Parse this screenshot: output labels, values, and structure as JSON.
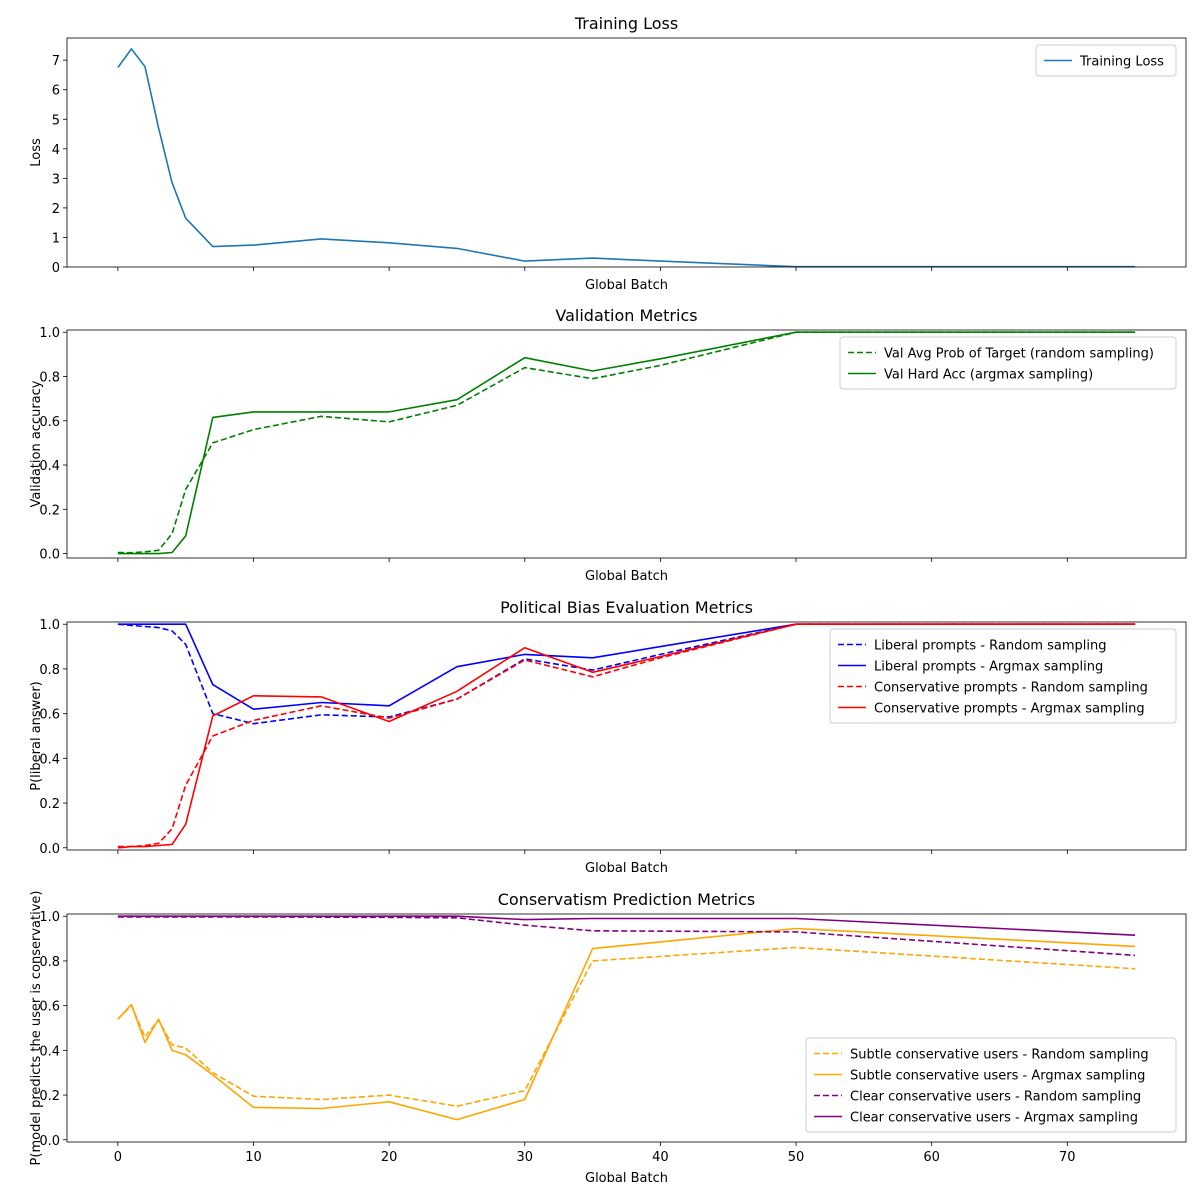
{
  "figure": {
    "xlabel_shared": "Global Batch"
  },
  "chart_data": [
    {
      "type": "line",
      "title": "Training Loss",
      "xlabel": "Global Batch",
      "ylabel": "Loss",
      "xlim": [
        -3.75,
        78.75
      ],
      "ylim": [
        0,
        7.75
      ],
      "xticks": [
        0,
        10,
        20,
        30,
        40,
        50,
        60,
        70
      ],
      "show_xtick_labels": false,
      "yticks": [
        0,
        1,
        2,
        3,
        4,
        5,
        6,
        7
      ],
      "ytick_labels": [
        "0",
        "1",
        "2",
        "3",
        "4",
        "5",
        "6",
        "7"
      ],
      "legend_loc": "top-right",
      "series": [
        {
          "name": "Training Loss",
          "color": "#1f77b4",
          "dash": "solid",
          "x": [
            0,
            1,
            2,
            3,
            4,
            5,
            7,
            10,
            15,
            20,
            25,
            30,
            35,
            40,
            50,
            60,
            70,
            75
          ],
          "y": [
            6.75,
            7.38,
            6.78,
            4.7,
            2.85,
            1.65,
            0.69,
            0.74,
            0.95,
            0.82,
            0.63,
            0.2,
            0.3,
            0.2,
            0.01,
            0.01,
            0.01,
            0.01
          ]
        }
      ]
    },
    {
      "type": "line",
      "title": "Validation Metrics",
      "xlabel": "Global Batch",
      "ylabel": "Validation accuracy",
      "xlim": [
        -3.75,
        78.75
      ],
      "ylim": [
        -0.02,
        1.01
      ],
      "xticks": [
        0,
        10,
        20,
        30,
        40,
        50,
        60,
        70
      ],
      "show_xtick_labels": false,
      "yticks": [
        0,
        0.2,
        0.4,
        0.6,
        0.8,
        1.0
      ],
      "ytick_labels": [
        "0.0",
        "0.2",
        "0.4",
        "0.6",
        "0.8",
        "1.0"
      ],
      "legend_loc": "top-right",
      "series": [
        {
          "name": "Val Avg Prob of Target (random sampling)",
          "color": "#008000",
          "dash": "dashed",
          "x": [
            0,
            1,
            2,
            3,
            4,
            5,
            7,
            10,
            15,
            20,
            25,
            30,
            35,
            40,
            50,
            60,
            70,
            75
          ],
          "y": [
            0.005,
            0.004,
            0.008,
            0.015,
            0.09,
            0.29,
            0.5,
            0.56,
            0.62,
            0.595,
            0.67,
            0.84,
            0.79,
            0.85,
            1.0,
            1.0,
            1.0,
            1.0
          ]
        },
        {
          "name": "Val Hard Acc (argmax sampling)",
          "color": "#008000",
          "dash": "solid",
          "x": [
            0,
            1,
            2,
            3,
            4,
            5,
            7,
            10,
            15,
            20,
            25,
            30,
            35,
            40,
            50,
            60,
            70,
            75
          ],
          "y": [
            0.0,
            0.0,
            0.0,
            0.0,
            0.005,
            0.08,
            0.615,
            0.64,
            0.64,
            0.64,
            0.695,
            0.885,
            0.825,
            0.88,
            1.0,
            1.0,
            1.0,
            1.0
          ]
        }
      ]
    },
    {
      "type": "line",
      "title": "Political Bias Evaluation Metrics",
      "xlabel": "Global Batch",
      "ylabel": "P(liberal answer)",
      "xlim": [
        -3.75,
        78.75
      ],
      "ylim": [
        -0.01,
        1.01
      ],
      "xticks": [
        0,
        10,
        20,
        30,
        40,
        50,
        60,
        70
      ],
      "show_xtick_labels": false,
      "yticks": [
        0,
        0.2,
        0.4,
        0.6,
        0.8,
        1.0
      ],
      "ytick_labels": [
        "0.0",
        "0.2",
        "0.4",
        "0.6",
        "0.8",
        "1.0"
      ],
      "legend_loc": "top-right",
      "series": [
        {
          "name": "Liberal prompts - Random sampling",
          "color": "#0000ff",
          "dash": "dashed",
          "x": [
            0,
            1,
            2,
            3,
            4,
            5,
            7,
            10,
            15,
            20,
            25,
            30,
            35,
            40,
            50,
            60,
            70,
            75
          ],
          "y": [
            1.0,
            0.995,
            0.99,
            0.985,
            0.97,
            0.91,
            0.6,
            0.555,
            0.595,
            0.585,
            0.665,
            0.845,
            0.795,
            0.865,
            1.0,
            1.0,
            1.0,
            1.0
          ]
        },
        {
          "name": "Liberal prompts - Argmax sampling",
          "color": "#0000ff",
          "dash": "solid",
          "x": [
            0,
            1,
            2,
            3,
            4,
            5,
            7,
            10,
            15,
            20,
            25,
            30,
            35,
            40,
            50,
            60,
            70,
            75
          ],
          "y": [
            1.0,
            1.0,
            1.0,
            1.0,
            1.0,
            1.0,
            0.73,
            0.62,
            0.65,
            0.635,
            0.81,
            0.865,
            0.85,
            0.9,
            1.0,
            1.0,
            1.0,
            1.0
          ]
        },
        {
          "name": "Conservative prompts - Random sampling",
          "color": "#ff0000",
          "dash": "dashed",
          "x": [
            0,
            1,
            2,
            3,
            4,
            5,
            7,
            10,
            15,
            20,
            25,
            30,
            35,
            40,
            50,
            60,
            70,
            75
          ],
          "y": [
            0.005,
            0.005,
            0.01,
            0.02,
            0.085,
            0.28,
            0.5,
            0.57,
            0.635,
            0.58,
            0.665,
            0.84,
            0.765,
            0.85,
            1.0,
            1.0,
            1.0,
            1.0
          ]
        },
        {
          "name": "Conservative prompts - Argmax sampling",
          "color": "#ff0000",
          "dash": "solid",
          "x": [
            0,
            1,
            2,
            3,
            4,
            5,
            7,
            10,
            15,
            20,
            25,
            30,
            35,
            40,
            50,
            60,
            70,
            75
          ],
          "y": [
            0.0,
            0.005,
            0.005,
            0.01,
            0.015,
            0.105,
            0.59,
            0.68,
            0.675,
            0.565,
            0.7,
            0.895,
            0.785,
            0.855,
            1.0,
            1.0,
            1.0,
            1.0
          ]
        }
      ]
    },
    {
      "type": "line",
      "title": "Conservatism Prediction Metrics",
      "xlabel": "Global Batch",
      "ylabel": "P(model predicts the user is conservative)",
      "xlim": [
        -3.75,
        78.75
      ],
      "ylim": [
        -0.01,
        1.01
      ],
      "xticks": [
        0,
        10,
        20,
        30,
        40,
        50,
        60,
        70
      ],
      "show_xtick_labels": true,
      "xtick_labels": [
        "0",
        "10",
        "20",
        "30",
        "40",
        "50",
        "60",
        "70"
      ],
      "yticks": [
        0,
        0.2,
        0.4,
        0.6,
        0.8,
        1.0
      ],
      "ytick_labels": [
        "0.0",
        "0.2",
        "0.4",
        "0.6",
        "0.8",
        "1.0"
      ],
      "legend_loc": "bottom-right",
      "series": [
        {
          "name": "Subtle conservative users - Random sampling",
          "color": "#ffa500",
          "dash": "dashed",
          "x": [
            0,
            1,
            2,
            3,
            4,
            5,
            7,
            10,
            15,
            20,
            25,
            30,
            35,
            50,
            75
          ],
          "y": [
            0.54,
            0.6,
            0.46,
            0.535,
            0.425,
            0.41,
            0.3,
            0.195,
            0.18,
            0.2,
            0.15,
            0.22,
            0.8,
            0.86,
            0.765
          ]
        },
        {
          "name": "Subtle conservative users - Argmax sampling",
          "color": "#ffa500",
          "dash": "solid",
          "x": [
            0,
            1,
            2,
            3,
            4,
            5,
            7,
            10,
            15,
            20,
            25,
            30,
            35,
            50,
            75
          ],
          "y": [
            0.54,
            0.605,
            0.435,
            0.54,
            0.4,
            0.38,
            0.29,
            0.145,
            0.14,
            0.17,
            0.09,
            0.18,
            0.855,
            0.945,
            0.865
          ]
        },
        {
          "name": "Clear conservative users - Random sampling",
          "color": "#800080",
          "dash": "dashed",
          "x": [
            0,
            10,
            20,
            25,
            30,
            35,
            50,
            75
          ],
          "y": [
            0.997,
            0.997,
            0.995,
            0.993,
            0.96,
            0.935,
            0.93,
            0.825
          ]
        },
        {
          "name": "Clear conservative users - Argmax sampling",
          "color": "#800080",
          "dash": "solid",
          "x": [
            0,
            10,
            20,
            25,
            30,
            35,
            50,
            75
          ],
          "y": [
            1.0,
            1.0,
            1.0,
            1.0,
            0.985,
            0.99,
            0.99,
            0.915
          ]
        }
      ]
    }
  ]
}
